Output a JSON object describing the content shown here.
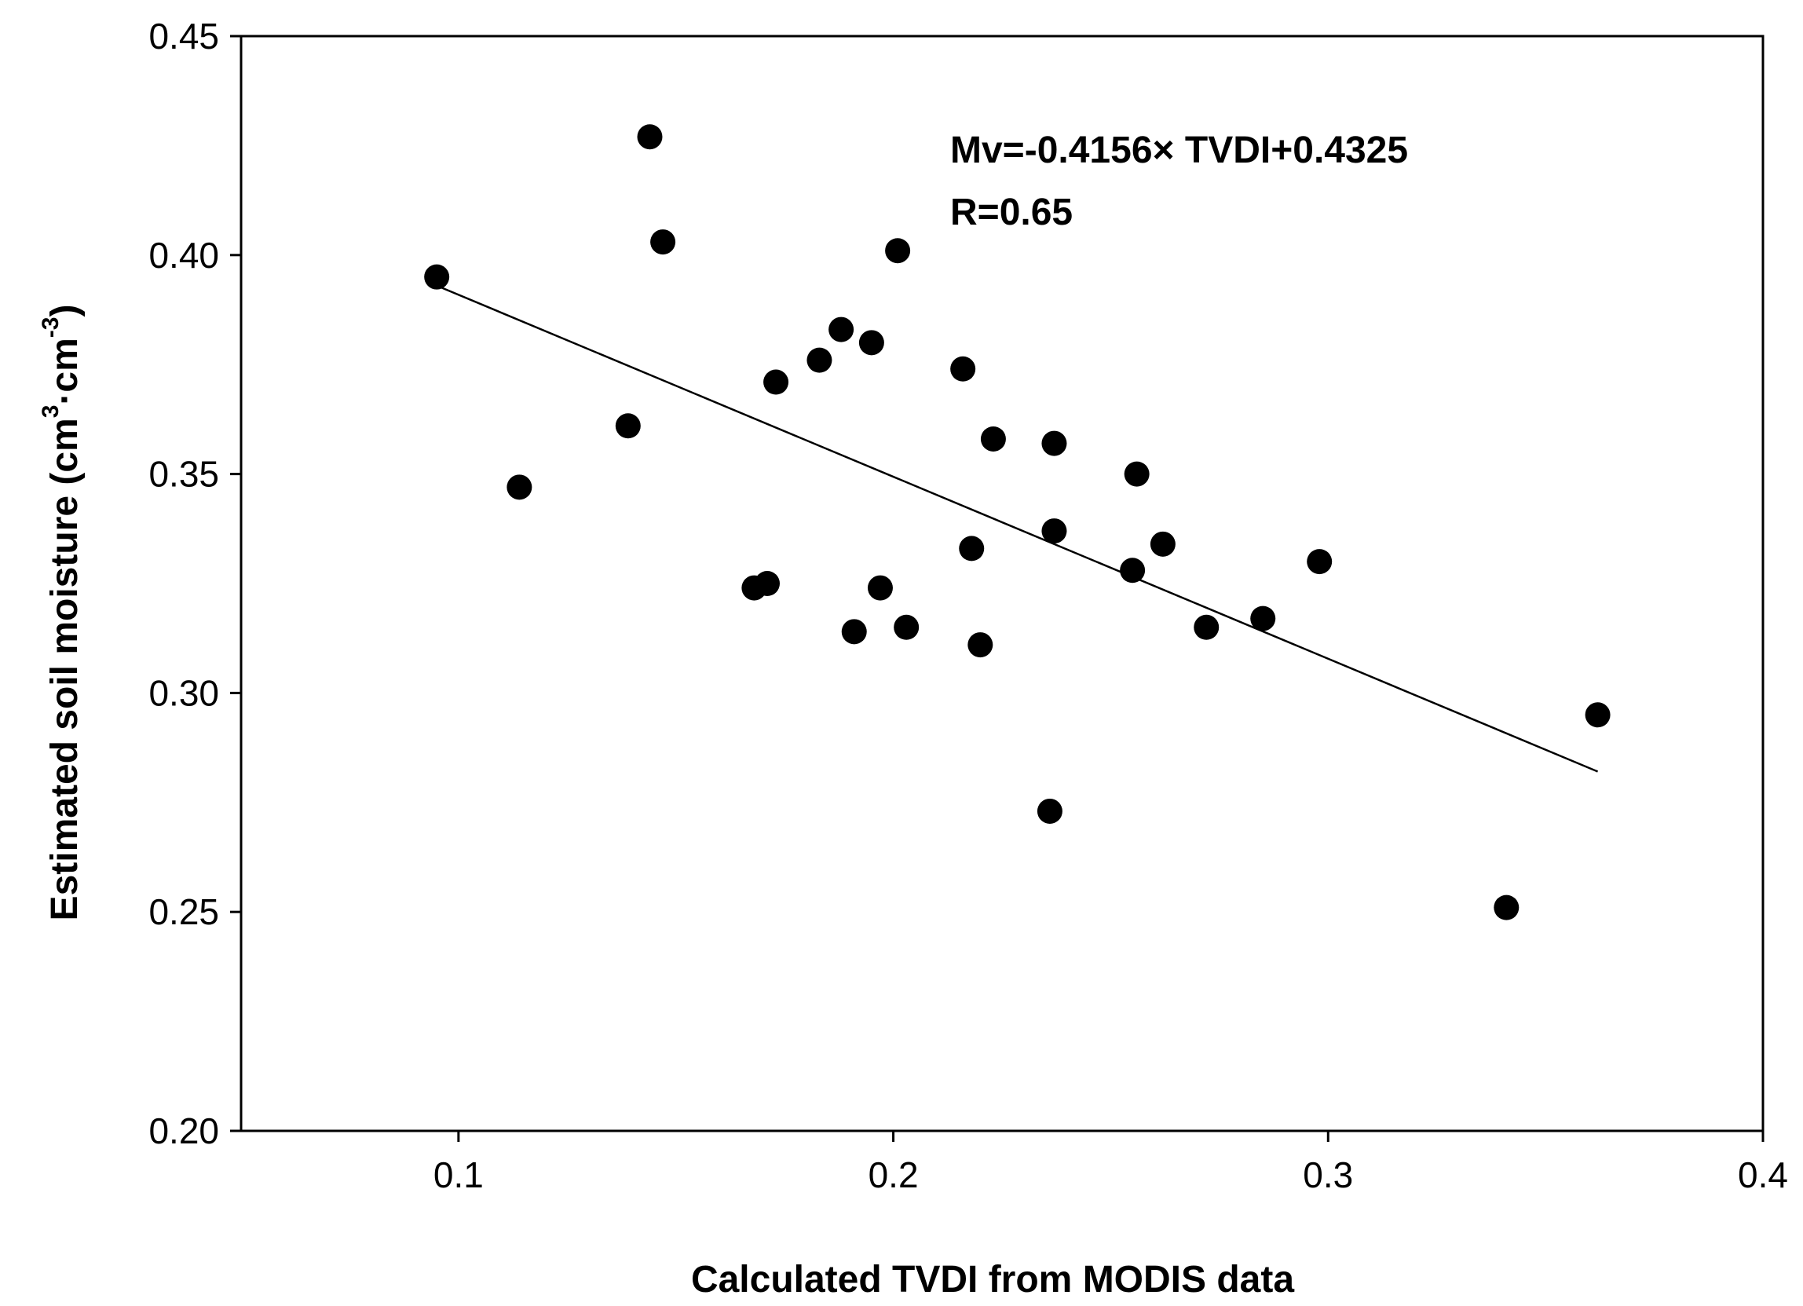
{
  "chart_data": {
    "type": "scatter",
    "xlabel": "Calculated TVDI from MODIS data",
    "ylabel": {
      "prefix": "Estimated soil moisture (cm",
      "sup1": "3",
      "mid": "·cm",
      "sup2": "-3",
      "suffix": ")"
    },
    "xlim": [
      0.05,
      0.4
    ],
    "ylim": [
      0.2,
      0.45
    ],
    "xticks": [
      0.1,
      0.2,
      0.3,
      0.4
    ],
    "xtick_labels": [
      "0.1",
      "0.2",
      "0.3",
      "0.4"
    ],
    "yticks": [
      0.2,
      0.25,
      0.3,
      0.35,
      0.4,
      0.45
    ],
    "ytick_labels": [
      "0.20",
      "0.25",
      "0.30",
      "0.35",
      "0.40",
      "0.45"
    ],
    "grid": false,
    "annotations": {
      "equation": "Mv=-0.4156× TVDI+0.4325",
      "r_value": "R=0.65"
    },
    "fit_line": {
      "slope": -0.4156,
      "intercept": 0.4325,
      "x_start": 0.095,
      "x_end": 0.362
    },
    "points": [
      {
        "x": 0.095,
        "y": 0.395
      },
      {
        "x": 0.114,
        "y": 0.347
      },
      {
        "x": 0.139,
        "y": 0.361
      },
      {
        "x": 0.144,
        "y": 0.427
      },
      {
        "x": 0.147,
        "y": 0.403
      },
      {
        "x": 0.168,
        "y": 0.324
      },
      {
        "x": 0.171,
        "y": 0.325
      },
      {
        "x": 0.173,
        "y": 0.371
      },
      {
        "x": 0.183,
        "y": 0.376
      },
      {
        "x": 0.188,
        "y": 0.383
      },
      {
        "x": 0.191,
        "y": 0.314
      },
      {
        "x": 0.195,
        "y": 0.38
      },
      {
        "x": 0.197,
        "y": 0.324
      },
      {
        "x": 0.201,
        "y": 0.401
      },
      {
        "x": 0.203,
        "y": 0.315
      },
      {
        "x": 0.216,
        "y": 0.374
      },
      {
        "x": 0.218,
        "y": 0.333
      },
      {
        "x": 0.22,
        "y": 0.311
      },
      {
        "x": 0.223,
        "y": 0.358
      },
      {
        "x": 0.236,
        "y": 0.273
      },
      {
        "x": 0.237,
        "y": 0.357
      },
      {
        "x": 0.237,
        "y": 0.337
      },
      {
        "x": 0.255,
        "y": 0.328
      },
      {
        "x": 0.256,
        "y": 0.35
      },
      {
        "x": 0.262,
        "y": 0.334
      },
      {
        "x": 0.272,
        "y": 0.315
      },
      {
        "x": 0.285,
        "y": 0.317
      },
      {
        "x": 0.298,
        "y": 0.33
      },
      {
        "x": 0.341,
        "y": 0.251
      },
      {
        "x": 0.362,
        "y": 0.295
      }
    ]
  }
}
